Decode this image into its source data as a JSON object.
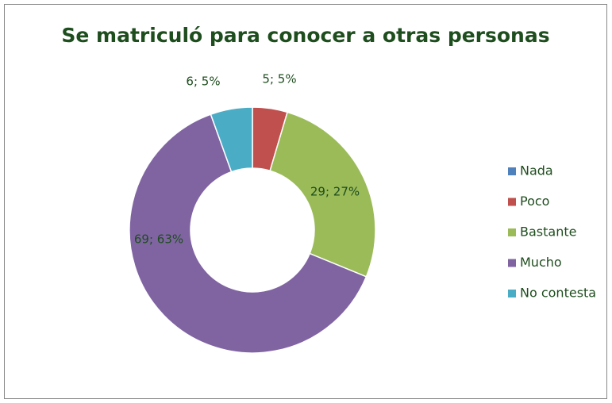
{
  "chart_data": {
    "type": "donut",
    "title": "Se matriculó para conocer a otras personas",
    "categories": [
      "Nada",
      "Poco",
      "Bastante",
      "Mucho",
      "No contesta"
    ],
    "values": [
      0,
      5,
      29,
      69,
      6
    ],
    "value_labels": [
      null,
      "5; 5%",
      "29; 27%",
      "69; 63%",
      "6; 5%"
    ],
    "colors": [
      "#4f81bd",
      "#c0504d",
      "#9bbb59",
      "#8064a2",
      "#4bacc6"
    ],
    "legend": "right"
  }
}
